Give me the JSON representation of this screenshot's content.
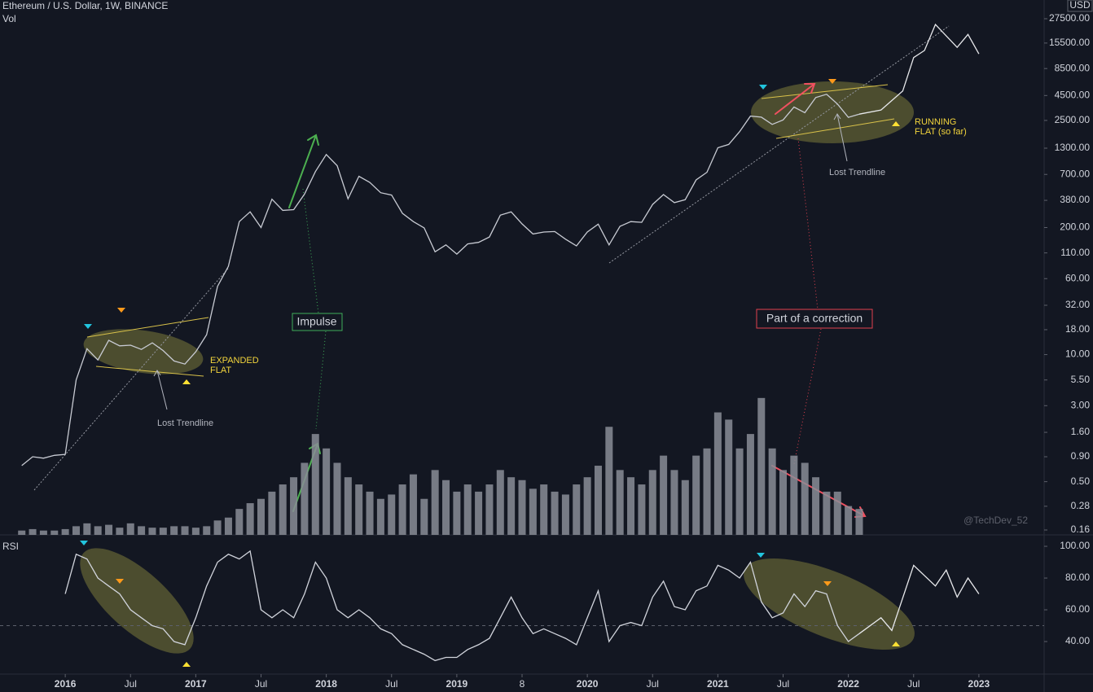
{
  "chart_data": [
    {
      "type": "line",
      "title": "Ethereum / U.S. Dollar, 1W, BINANCE",
      "y_unit": "USD",
      "log": true,
      "ylim": [
        0.1426,
        42770
      ],
      "yticks": [
        {
          "value": 27500,
          "label": "27500.00"
        },
        {
          "value": 15500,
          "label": "15500.00"
        },
        {
          "value": 8500,
          "label": "8500.00"
        },
        {
          "value": 4500,
          "label": "4500.00"
        },
        {
          "value": 2500,
          "label": "2500.00"
        },
        {
          "value": 1300,
          "label": "1300.00"
        },
        {
          "value": 700,
          "label": "700.00"
        },
        {
          "value": 380,
          "label": "380.00"
        },
        {
          "value": 200,
          "label": "200.00"
        },
        {
          "value": 110,
          "label": "110.00"
        },
        {
          "value": 60,
          "label": "60.00"
        },
        {
          "value": 32,
          "label": "32.00"
        },
        {
          "value": 18,
          "label": "18.00"
        },
        {
          "value": 10,
          "label": "10.00"
        },
        {
          "value": 5.5,
          "label": "5.50"
        },
        {
          "value": 3,
          "label": "3.00"
        },
        {
          "value": 1.6,
          "label": "1.60"
        },
        {
          "value": 0.9,
          "label": "0.90"
        },
        {
          "value": 0.5,
          "label": "0.50"
        },
        {
          "value": 0.28,
          "label": "0.28"
        },
        {
          "value": 0.16,
          "label": "0.16"
        }
      ],
      "series": [
        {
          "color": "#c8cbd3",
          "x": [
            "2015-09",
            "2015-10",
            "2015-11",
            "2015-12",
            "2016-01",
            "2016-02",
            "2016-03",
            "2016-04",
            "2016-05",
            "2016-06",
            "2016-07",
            "2016-08",
            "2016-09",
            "2016-10",
            "2016-11",
            "2016-12",
            "2017-01",
            "2017-02",
            "2017-03",
            "2017-04",
            "2017-05",
            "2017-06",
            "2017-07",
            "2017-08",
            "2017-09",
            "2017-10",
            "2017-11",
            "2017-12",
            "2018-01",
            "2018-02",
            "2018-03",
            "2018-04",
            "2018-05",
            "2018-06",
            "2018-07",
            "2018-08",
            "2018-09",
            "2018-10",
            "2018-11",
            "2018-12",
            "2019-01",
            "2019-02",
            "2019-03",
            "2019-04",
            "2019-05",
            "2019-06",
            "2019-07",
            "2019-08",
            "2019-09",
            "2019-10",
            "2019-11",
            "2019-12",
            "2020-01",
            "2020-02",
            "2020-03",
            "2020-04",
            "2020-05",
            "2020-06",
            "2020-07",
            "2020-08",
            "2020-09",
            "2020-10",
            "2020-11",
            "2020-12",
            "2021-01",
            "2021-02",
            "2021-03",
            "2021-04",
            "2021-05",
            "2021-06",
            "2021-07",
            "2021-08",
            "2021-09",
            "2021-10",
            "2021-11",
            "2021-12",
            "2022-01",
            "2022-02"
          ],
          "values": [
            0.73,
            0.9,
            0.87,
            0.93,
            0.95,
            5.5,
            11.5,
            8.8,
            14,
            12.3,
            12.5,
            11.3,
            13.2,
            11,
            8.6,
            8,
            10.7,
            16,
            50,
            80,
            230,
            290,
            200,
            390,
            300,
            305,
            440,
            750,
            1120,
            860,
            395,
            670,
            580,
            455,
            430,
            280,
            230,
            198,
            113,
            133,
            107,
            136,
            141,
            160,
            268,
            290,
            218,
            172,
            180,
            182,
            152,
            130,
            180,
            217,
            133,
            206,
            230,
            226,
            345,
            435,
            360,
            386,
            615,
            737,
            1312,
            1420,
            1918,
            2770,
            2700,
            2275,
            2530,
            3430,
            3000,
            4290,
            4630,
            3680,
            2690,
            2900
          ]
        },
        {
          "color": "#e8e9ec",
          "x": [
            "2022-02",
            "2022-04",
            "2022-06",
            "2022-07",
            "2022-08",
            "2022-09",
            "2022-11",
            "2022-12",
            "2023-01"
          ],
          "values": [
            2900,
            3200,
            5000,
            11000,
            13000,
            24000,
            14000,
            19000,
            12000
          ]
        }
      ],
      "annotations": [
        "EXPANDED",
        "FLAT",
        "Lost Trendline",
        "Impulse",
        "Part of a correction",
        "RUNNING",
        "FLAT (so far)",
        "Lost Trendline",
        "@TechDev_52"
      ]
    },
    {
      "type": "bar",
      "title": "Vol",
      "color": "#8a8d96",
      "ylim": [
        0,
        100
      ],
      "x": [
        "2015-09",
        "2015-10",
        "2015-11",
        "2015-12",
        "2016-01",
        "2016-02",
        "2016-03",
        "2016-04",
        "2016-05",
        "2016-06",
        "2016-07",
        "2016-08",
        "2016-09",
        "2016-10",
        "2016-11",
        "2016-12",
        "2017-01",
        "2017-02",
        "2017-03",
        "2017-04",
        "2017-05",
        "2017-06",
        "2017-07",
        "2017-08",
        "2017-09",
        "2017-10",
        "2017-11",
        "2017-12",
        "2018-01",
        "2018-02",
        "2018-03",
        "2018-04",
        "2018-05",
        "2018-06",
        "2018-07",
        "2018-08",
        "2018-09",
        "2018-10",
        "2018-11",
        "2018-12",
        "2019-01",
        "2019-02",
        "2019-03",
        "2019-04",
        "2019-05",
        "2019-06",
        "2019-07",
        "2019-08",
        "2019-09",
        "2019-10",
        "2019-11",
        "2019-12",
        "2020-01",
        "2020-02",
        "2020-03",
        "2020-04",
        "2020-05",
        "2020-06",
        "2020-07",
        "2020-08",
        "2020-09",
        "2020-10",
        "2020-11",
        "2020-12",
        "2021-01",
        "2021-02",
        "2021-03",
        "2021-04",
        "2021-05",
        "2021-06",
        "2021-07",
        "2021-08",
        "2021-09",
        "2021-10",
        "2021-11",
        "2021-12",
        "2022-01",
        "2022-02"
      ],
      "values": [
        3,
        4,
        3,
        3,
        4,
        6,
        8,
        6,
        7,
        5,
        8,
        6,
        5,
        5,
        6,
        6,
        5,
        6,
        10,
        12,
        18,
        22,
        25,
        30,
        35,
        40,
        50,
        70,
        60,
        50,
        40,
        35,
        30,
        25,
        28,
        35,
        42,
        25,
        45,
        38,
        30,
        35,
        30,
        35,
        45,
        40,
        38,
        32,
        35,
        30,
        28,
        35,
        40,
        48,
        75,
        45,
        40,
        35,
        45,
        55,
        45,
        38,
        55,
        60,
        85,
        80,
        60,
        70,
        95,
        60,
        45,
        55,
        50,
        40,
        30,
        30,
        20,
        18
      ]
    },
    {
      "type": "line",
      "title": "RSI",
      "ylim": [
        19.5,
        107.2
      ],
      "level": 50,
      "yticks": [
        {
          "value": 100,
          "label": "100.00"
        },
        {
          "value": 80,
          "label": "80.00"
        },
        {
          "value": 60,
          "label": "60.00"
        },
        {
          "value": 40,
          "label": "40.00"
        }
      ],
      "xlim": [
        "2015-07",
        "2023-07"
      ],
      "xticks": [
        {
          "value": "2016-01",
          "label": "2016"
        },
        {
          "value": "2016-07",
          "label": "Jul"
        },
        {
          "value": "2017-01",
          "label": "2017"
        },
        {
          "value": "2017-07",
          "label": "Jul"
        },
        {
          "value": "2018-01",
          "label": "2018"
        },
        {
          "value": "2018-07",
          "label": "Jul"
        },
        {
          "value": "2019-01",
          "label": "2019"
        },
        {
          "value": "2019-07",
          "label": "8"
        },
        {
          "value": "2020-01",
          "label": "2020"
        },
        {
          "value": "2020-07",
          "label": "Jul"
        },
        {
          "value": "2021-01",
          "label": "2021"
        },
        {
          "value": "2021-07",
          "label": "Jul"
        },
        {
          "value": "2022-01",
          "label": "2022"
        },
        {
          "value": "2022-07",
          "label": "Jul"
        },
        {
          "value": "2023-01",
          "label": "2023"
        }
      ],
      "series": [
        {
          "color": "#d1d4dc",
          "x": [
            "2015-09",
            "2015-10",
            "2015-11",
            "2015-12",
            "2016-01",
            "2016-02",
            "2016-03",
            "2016-04",
            "2016-05",
            "2016-06",
            "2016-07",
            "2016-08",
            "2016-09",
            "2016-10",
            "2016-11",
            "2016-12",
            "2017-01",
            "2017-02",
            "2017-03",
            "2017-04",
            "2017-05",
            "2017-06",
            "2017-07",
            "2017-08",
            "2017-09",
            "2017-10",
            "2017-11",
            "2017-12",
            "2018-01",
            "2018-02",
            "2018-03",
            "2018-04",
            "2018-05",
            "2018-06",
            "2018-07",
            "2018-08",
            "2018-09",
            "2018-10",
            "2018-11",
            "2018-12",
            "2019-01",
            "2019-02",
            "2019-03",
            "2019-04",
            "2019-05",
            "2019-06",
            "2019-07",
            "2019-08",
            "2019-09",
            "2019-10",
            "2019-11",
            "2019-12",
            "2020-01",
            "2020-02",
            "2020-03",
            "2020-04",
            "2020-05",
            "2020-06",
            "2020-07",
            "2020-08",
            "2020-09",
            "2020-10",
            "2020-11",
            "2020-12",
            "2021-01",
            "2021-02",
            "2021-03",
            "2021-04",
            "2021-05",
            "2021-06",
            "2021-07",
            "2021-08",
            "2021-09",
            "2021-10",
            "2021-11",
            "2021-12",
            "2022-01",
            "2022-02"
          ],
          "values": [
            null,
            null,
            null,
            null,
            70,
            95,
            92,
            80,
            75,
            70,
            60,
            55,
            50,
            48,
            40,
            38,
            55,
            75,
            90,
            95,
            92,
            97,
            60,
            55,
            60,
            55,
            70,
            90,
            80,
            60,
            55,
            60,
            55,
            48,
            45,
            38,
            35,
            32,
            28,
            30,
            30,
            35,
            38,
            42,
            55,
            68,
            55,
            45,
            48,
            45,
            42,
            38,
            55,
            72,
            40,
            50,
            52,
            50,
            68,
            78,
            62,
            60,
            72,
            75,
            88,
            85,
            80,
            90,
            65,
            55,
            58,
            70,
            62,
            72,
            70,
            50,
            40,
            45
          ]
        },
        {
          "color": "#e8e9ec",
          "x": [
            "2022-02",
            "2022-04",
            "2022-05",
            "2022-07",
            "2022-09",
            "2022-10",
            "2022-11",
            "2022-12",
            "2023-01"
          ],
          "values": [
            45,
            55,
            47,
            88,
            75,
            85,
            68,
            80,
            70
          ]
        }
      ]
    }
  ]
}
